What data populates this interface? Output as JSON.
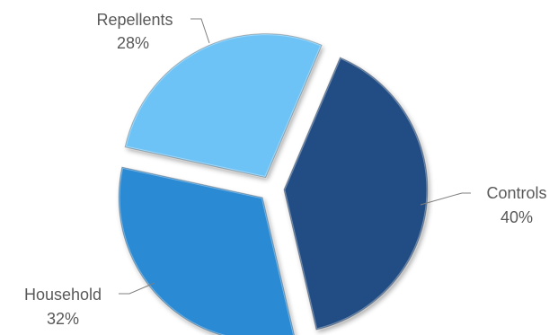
{
  "chart_data": {
    "type": "pie",
    "title": "",
    "slices": [
      {
        "label": "Controls",
        "value": 40,
        "value_label": "40%",
        "color": "#244d84"
      },
      {
        "label": "Household",
        "value": 32,
        "value_label": "32%",
        "color": "#2c8ad4"
      },
      {
        "label": "Repellents",
        "value": 28,
        "value_label": "28%",
        "color": "#6ec3f6"
      }
    ],
    "exploded": true,
    "legend": "none",
    "data_labels": "outside-with-leader-lines"
  }
}
